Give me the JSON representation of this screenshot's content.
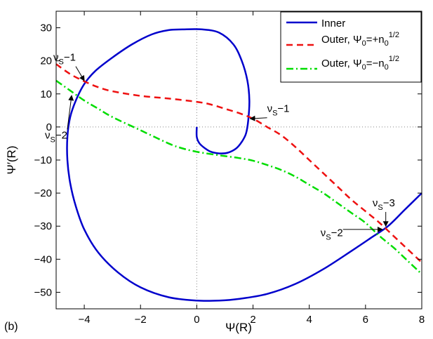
{
  "panel_label": "(b)",
  "chart_data": {
    "type": "line",
    "xlabel": "Ψ(R)",
    "ylabel": "Ψ′(R)",
    "xlim": [
      -5,
      8
    ],
    "ylim": [
      -55,
      35
    ],
    "xticks": [
      -4,
      -2,
      0,
      2,
      4,
      6,
      8
    ],
    "yticks": [
      30,
      20,
      10,
      0,
      -10,
      -20,
      -30,
      -40,
      -50
    ],
    "zero_lines": "dotted",
    "legend_position": "top-right",
    "series": [
      {
        "name": "Inner",
        "style": "solid",
        "color": "#0000cc",
        "x": [
          0,
          0,
          0.1,
          0.3,
          0.5,
          0.8,
          1.1,
          1.4,
          1.6,
          1.75,
          1.83,
          1.87,
          1.8,
          1.6,
          1.3,
          0.8,
          0.2,
          -0.5,
          -1.0,
          -1.6,
          -2.3,
          -3.0,
          -3.6,
          -4.0,
          -4.3,
          -4.5,
          -4.6,
          -4.6,
          -4.5,
          -4.3,
          -4.0,
          -3.5,
          -2.8,
          -2.0,
          -1.0,
          0.0,
          0.8,
          1.5,
          2.5,
          3.5,
          4.5,
          5.5,
          6.2,
          6.8,
          7.4,
          8.0
        ],
        "y": [
          0,
          -3,
          -5,
          -6.5,
          -7.5,
          -8,
          -7.8,
          -6.5,
          -4.5,
          -2,
          2,
          8,
          14,
          20,
          25,
          28.5,
          29.5,
          29.5,
          29.3,
          28,
          25,
          21,
          17,
          13,
          8,
          3,
          -3,
          -10,
          -17,
          -24,
          -31,
          -38,
          -44,
          -48.5,
          -51.5,
          -52.5,
          -52.5,
          -52,
          -50.5,
          -47.5,
          -43,
          -37.5,
          -33.5,
          -30,
          -25,
          -20
        ]
      },
      {
        "name": "Outer, Ψ0=+n0^1/2",
        "style": "dashed",
        "color": "#ee1111",
        "x": [
          -5,
          -4.5,
          -4,
          -3.5,
          -3,
          -2,
          -1,
          0,
          0.5,
          1,
          1.5,
          2,
          2.5,
          3,
          3.5,
          4,
          4.5,
          5,
          5.5,
          6,
          6.5,
          7,
          7.5,
          8
        ],
        "y": [
          19,
          16,
          13.8,
          12,
          10.8,
          9.4,
          8.6,
          7.6,
          6.8,
          5.5,
          4.2,
          2.5,
          0,
          -2.5,
          -6,
          -10,
          -14,
          -18,
          -22,
          -25.5,
          -29,
          -33,
          -37,
          -41
        ]
      },
      {
        "name": "Outer, Ψ0=−n0^1/2",
        "style": "dash-dot",
        "color": "#00dd00",
        "x": [
          -5,
          -4.5,
          -4,
          -3.5,
          -3,
          -2,
          -1,
          -0.5,
          0,
          0.5,
          1,
          1.5,
          2,
          2.5,
          3,
          3.5,
          4,
          4.5,
          5,
          5.5,
          6,
          6.5,
          7,
          7.5,
          8
        ],
        "y": [
          14,
          11,
          8,
          5.5,
          3,
          -1,
          -5,
          -6.5,
          -7.5,
          -8.2,
          -8.8,
          -9.4,
          -10.2,
          -11.5,
          -13,
          -15,
          -17.5,
          -20,
          -23,
          -26,
          -29,
          -33,
          -36.5,
          -40.5,
          -44.5
        ]
      }
    ],
    "legend": {
      "inner": "Inner",
      "outer_plus_prefix": "Outer, Ψ",
      "outer_plus_sub": "0",
      "outer_plus_mid": "=+n",
      "outer_plus_sub2": "0",
      "outer_plus_sup": "1/2",
      "outer_minus_prefix": "Outer, Ψ",
      "outer_minus_sub": "0",
      "outer_minus_mid": "=−n",
      "outer_minus_sub2": "0",
      "outer_minus_sup": "1/2"
    },
    "annotations": [
      {
        "nu": "ν",
        "sub": "S",
        "rest": "−1",
        "tx": -5.1,
        "ty": 20,
        "px": -4.0,
        "py": 14
      },
      {
        "nu": "ν",
        "sub": "S",
        "rest": "−2",
        "tx": -5.4,
        "ty": -3.5,
        "px": -4.45,
        "py": 9.5
      },
      {
        "nu": "ν",
        "sub": "S",
        "rest": "−1",
        "tx": 2.5,
        "ty": 4.5,
        "px": 1.9,
        "py": 2.5
      },
      {
        "nu": "ν",
        "sub": "S",
        "rest": "−3",
        "tx": 6.25,
        "ty": -24,
        "px": 6.72,
        "py": -30
      },
      {
        "nu": "ν",
        "sub": "S",
        "rest": "−2",
        "tx": 4.4,
        "ty": -33,
        "px": 6.6,
        "py": -31
      }
    ]
  }
}
